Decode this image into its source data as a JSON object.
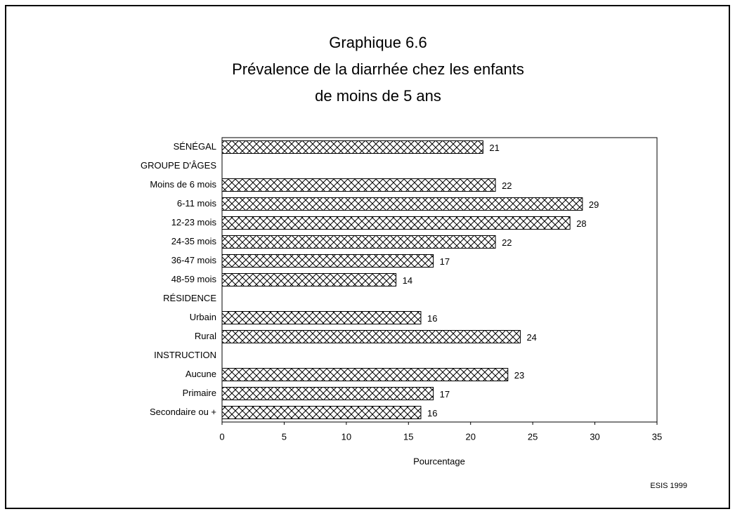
{
  "chart_data": {
    "type": "barh",
    "title": [
      "Graphique 6.6",
      "Prévalence de la diarrhée chez les enfants",
      "de moins de 5 ans"
    ],
    "categories": [
      "SÉNÉGAL",
      "GROUPE D'ÂGES",
      "Moins de 6 mois",
      "6-11 mois",
      "12-23 mois",
      "24-35 mois",
      "36-47 mois",
      "48-59 mois",
      "RÉSIDENCE",
      "Urbain",
      "Rural",
      "INSTRUCTION",
      "Aucune",
      "Primaire",
      "Secondaire ou +"
    ],
    "values": [
      21,
      null,
      22,
      29,
      28,
      22,
      17,
      14,
      null,
      16,
      24,
      null,
      23,
      17,
      16
    ],
    "xlim": [
      0,
      35
    ],
    "xticks": [
      0,
      5,
      10,
      15,
      20,
      25,
      30,
      35
    ],
    "xlabel": "Pourcentage",
    "source": "ESIS 1999",
    "color": "#000000"
  }
}
